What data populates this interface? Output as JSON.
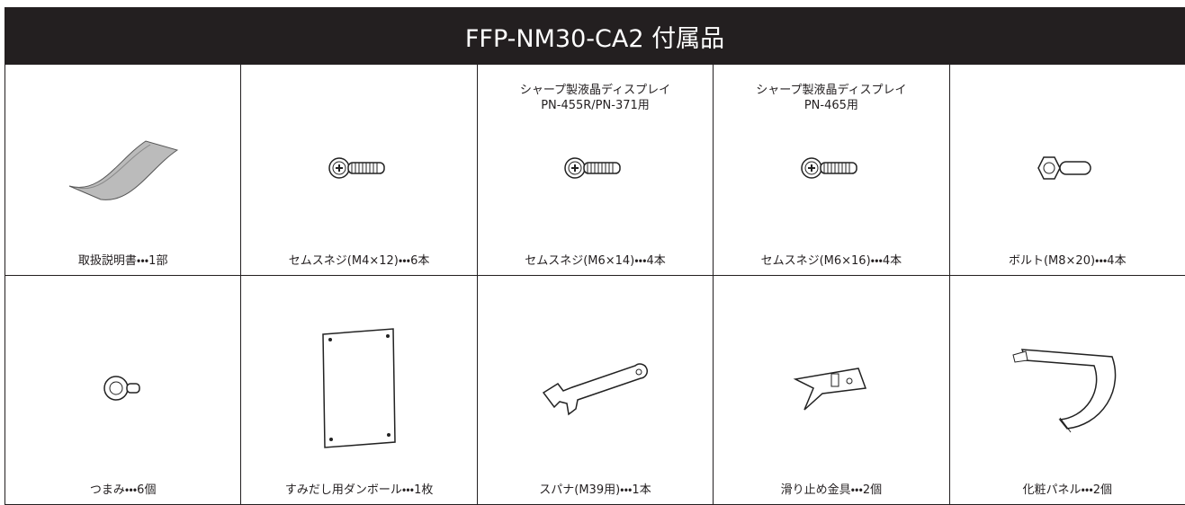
{
  "header": {
    "title": "FFP-NM30-CA2 付属品"
  },
  "items": [
    {
      "caption": "取扱説明書・・・1部"
    },
    {
      "caption": "セムスネジ(M4×12)・・・6本"
    },
    {
      "note": [
        "シャープ製液晶ディスプレイ",
        "PN-455R/PN-371用"
      ],
      "caption": "セムスネジ(M6×14)・・・4本"
    },
    {
      "note": [
        "シャープ製液晶ディスプレイ",
        "PN-465用"
      ],
      "caption": "セムスネジ(M6×16)・・・4本"
    },
    {
      "caption": "ボルト(M8×20)・・・4本"
    },
    {
      "caption": "つまみ・・・6個"
    },
    {
      "caption": "すみだし用ダンボール・・・1枚"
    },
    {
      "caption": "スパナ(M39用)・・・1本"
    },
    {
      "caption": "滑り止め金具・・・2個"
    },
    {
      "caption": "化粧パネル・・・2個"
    }
  ]
}
